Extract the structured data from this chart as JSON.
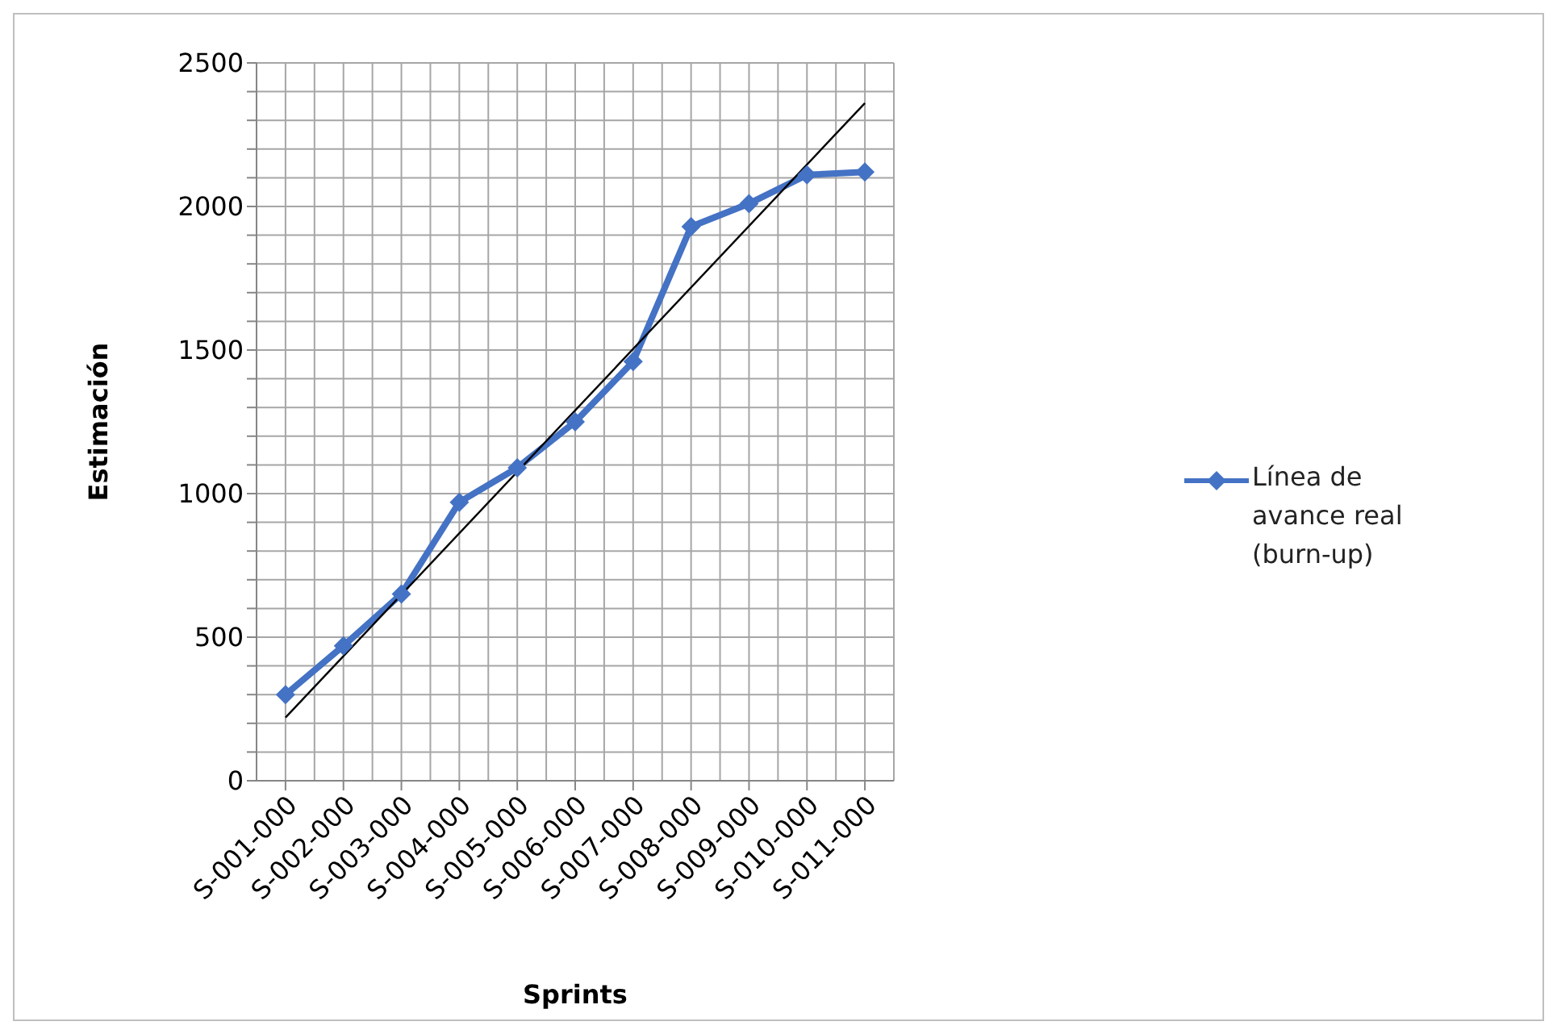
{
  "chart_data": {
    "type": "line",
    "categories": [
      "S-001-000",
      "S-002-000",
      "S-003-000",
      "S-004-000",
      "S-005-000",
      "S-006-000",
      "S-007-000",
      "S-008-000",
      "S-009-000",
      "S-010-000",
      "S-011-000"
    ],
    "series": [
      {
        "name": "Línea de avance real (burn-up)",
        "color": "#4472c4",
        "marker": "diamond",
        "values": [
          300,
          470,
          650,
          970,
          1090,
          1250,
          1460,
          1930,
          2010,
          2110,
          2120
        ]
      },
      {
        "type": "line",
        "color": "#000000",
        "marker": "none",
        "x": [
          "S-001-000",
          "S-011-000"
        ],
        "values": [
          220,
          2360
        ]
      }
    ],
    "xlabel": "Sprints",
    "ylabel": "Estimación",
    "ylim": [
      0,
      2500
    ],
    "yticks": [
      0,
      {
        "value": 100,
        "label": null
      },
      {
        "value": 200,
        "label": null
      },
      {
        "value": 300,
        "label": null
      },
      {
        "value": 400,
        "label": null
      },
      500,
      {
        "value": 600,
        "label": null
      },
      {
        "value": 700,
        "label": null
      },
      {
        "value": 800,
        "label": null
      },
      {
        "value": 900,
        "label": null
      },
      1000,
      {
        "value": 1100,
        "label": null
      },
      {
        "value": 1200,
        "label": null
      },
      {
        "value": 1300,
        "label": null
      },
      {
        "value": 1400,
        "label": null
      },
      1500,
      {
        "value": 1600,
        "label": null
      },
      {
        "value": 1700,
        "label": null
      },
      {
        "value": 1800,
        "label": null
      },
      {
        "value": 1900,
        "label": null
      },
      2000,
      {
        "value": 2100,
        "label": null
      },
      {
        "value": 2200,
        "label": null
      },
      {
        "value": 2300,
        "label": null
      },
      {
        "value": 2400,
        "label": null
      },
      2500
    ],
    "grid": true,
    "legend": "right",
    "line_style": "solid"
  }
}
